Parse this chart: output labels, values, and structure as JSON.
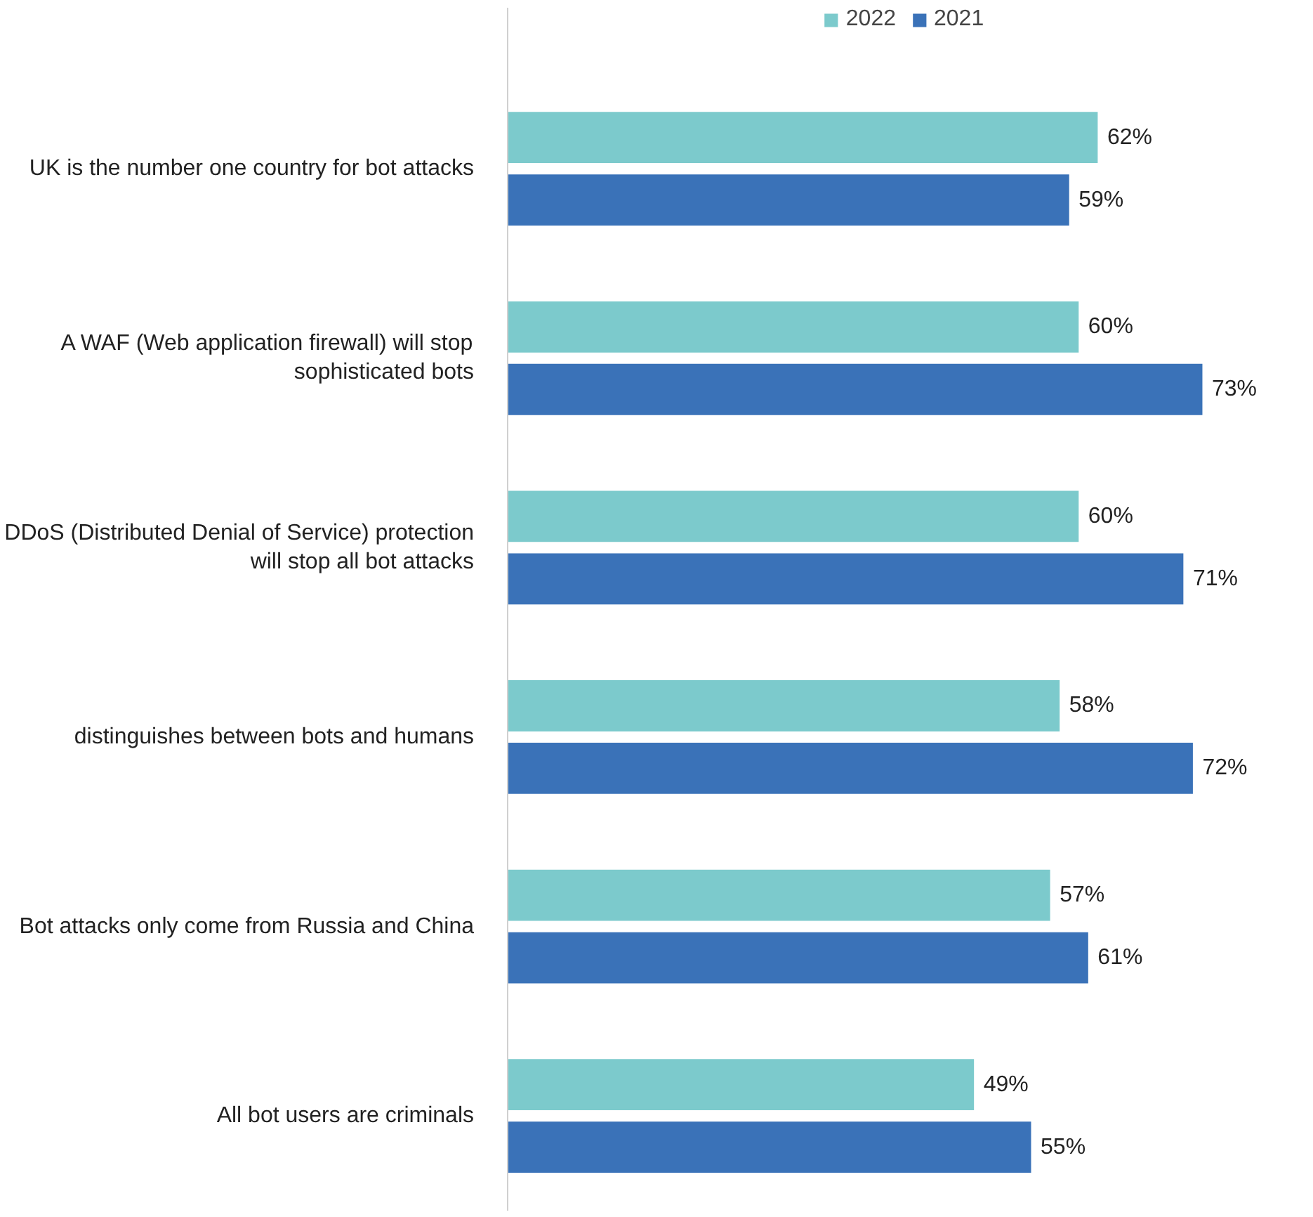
{
  "chart_data": {
    "type": "bar",
    "orientation": "horizontal",
    "categories": [
      "UK is the number one country for bot attacks",
      "A WAF (Web application firewall) will stop sophisticated bots",
      "DDoS (Distributed Denial of Service) protection will stop all bot attacks",
      "distinguishes between bots and humans",
      "Bot attacks only come from Russia and China",
      "All bot users are criminals"
    ],
    "series": [
      {
        "name": "2022",
        "color": "#7ccacc",
        "values": [
          62,
          60,
          60,
          58,
          57,
          49
        ],
        "value_labels": [
          "62%",
          "60%",
          "60%",
          "58%",
          "57%",
          "49%"
        ]
      },
      {
        "name": "2021",
        "color": "#3a72b8",
        "values": [
          59,
          73,
          71,
          72,
          61,
          55
        ],
        "value_labels": [
          "59%",
          "73%",
          "71%",
          "72%",
          "61%",
          "55%"
        ]
      }
    ],
    "tick_labels": "y",
    "grid": false,
    "legend": "top"
  }
}
